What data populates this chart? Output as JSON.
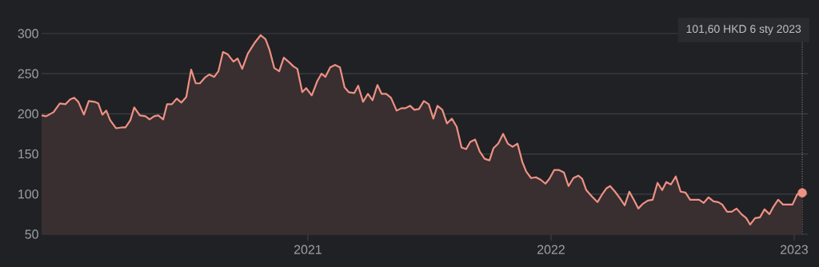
{
  "chart_data": {
    "type": "area",
    "series": [
      {
        "x": [
          2019.905,
          2019.924,
          2019.954,
          2019.98,
          2020.003,
          2020.023,
          2020.039,
          2020.056,
          2020.079,
          2020.099,
          2020.122,
          2020.138,
          2020.155,
          2020.171,
          2020.187,
          2020.211,
          2020.234,
          2020.25,
          2020.27,
          2020.286,
          2020.309,
          2020.332,
          2020.349,
          2020.368,
          2020.385,
          2020.405,
          2020.421,
          2020.441,
          2020.461,
          2020.48,
          2020.5,
          2020.52,
          2020.539,
          2020.556,
          2020.576,
          2020.595,
          2020.615,
          2020.632,
          2020.651,
          2020.671,
          2020.694,
          2020.711,
          2020.73,
          2020.753,
          2020.78,
          2020.806,
          2020.826,
          2020.842,
          2020.862,
          2020.882,
          2020.901,
          2020.924,
          2020.941,
          2020.957,
          2020.977,
          2020.993,
          2021.016,
          2021.039,
          2021.056,
          2021.072,
          2021.092,
          2021.112,
          2021.132,
          2021.151,
          2021.168,
          2021.191,
          2021.207,
          2021.227,
          2021.247,
          2021.266,
          2021.286,
          2021.303,
          2021.322,
          2021.342,
          2021.365,
          2021.385,
          2021.401,
          2021.421,
          2021.438,
          2021.457,
          2021.477,
          2021.497,
          2021.516,
          2021.533,
          2021.553,
          2021.572,
          2021.592,
          2021.612,
          2021.632,
          2021.651,
          2021.668,
          2021.688,
          2021.707,
          2021.727,
          2021.747,
          2021.763,
          2021.783,
          2021.803,
          2021.822,
          2021.842,
          2021.862,
          2021.882,
          2021.898,
          2021.918,
          2021.938,
          2021.957,
          2021.977,
          2021.993,
          2022.013,
          2022.033,
          2022.053,
          2022.072,
          2022.092,
          2022.112,
          2022.128,
          2022.145,
          2022.168,
          2022.191,
          2022.211,
          2022.227,
          2022.243,
          2022.263,
          2022.283,
          2022.303,
          2022.322,
          2022.342,
          2022.359,
          2022.378,
          2022.398,
          2022.418,
          2022.438,
          2022.457,
          2022.474,
          2022.493,
          2022.513,
          2022.533,
          2022.553,
          2022.572,
          2022.589,
          2022.609,
          2022.628,
          2022.648,
          2022.668,
          2022.688,
          2022.704,
          2022.724,
          2022.743,
          2022.763,
          2022.783,
          2022.803,
          2022.819,
          2022.839,
          2022.859,
          2022.878,
          2022.898,
          2022.914,
          2022.934,
          2022.954,
          2022.974,
          2022.993,
          2023.013,
          2023.033
        ],
        "values": [
          198,
          197,
          202,
          213,
          212,
          218,
          220,
          215,
          199,
          216,
          215,
          213,
          199,
          204,
          192,
          182,
          183,
          183,
          192,
          208,
          198,
          197,
          193,
          197,
          198,
          193,
          212,
          212,
          219,
          214,
          221,
          255,
          238,
          238,
          245,
          249,
          246,
          253,
          277,
          274,
          265,
          269,
          256,
          275,
          288,
          298,
          293,
          280,
          257,
          253,
          270,
          264,
          259,
          256,
          227,
          232,
          223,
          241,
          250,
          246,
          258,
          261,
          258,
          233,
          227,
          226,
          235,
          215,
          225,
          217,
          236,
          225,
          225,
          220,
          204,
          207,
          207,
          210,
          205,
          206,
          216,
          212,
          194,
          210,
          205,
          188,
          194,
          184,
          158,
          156,
          165,
          168,
          153,
          144,
          142,
          157,
          163,
          175,
          163,
          159,
          163,
          140,
          128,
          120,
          121,
          118,
          113,
          119,
          130,
          130,
          127,
          110,
          120,
          123,
          119,
          105,
          97,
          90,
          100,
          107,
          110,
          103,
          95,
          86,
          103,
          92,
          82,
          88,
          92,
          93,
          114,
          105,
          115,
          112,
          122,
          103,
          102,
          93,
          93,
          93,
          89,
          96,
          91,
          90,
          87,
          78,
          78,
          82,
          75,
          70,
          62,
          70,
          71,
          81,
          75,
          84,
          93,
          87,
          87,
          87,
          100,
          101.6
        ],
        "color": "#ee9184"
      },
      {
        "type": "scatter",
        "x": [
          2023.033
        ],
        "values": [
          101.6
        ],
        "color": "#ee9184",
        "marker": "circle"
      }
    ],
    "xlim": [
      2019.905,
      2023.056
    ],
    "ylim": [
      50,
      300
    ],
    "xticks": [
      2021,
      2022,
      2023
    ],
    "yticks": [
      50,
      100,
      150,
      200,
      250,
      300
    ],
    "grid": "y",
    "ref_lines": [
      {
        "axis": "x",
        "value": 2023.033,
        "color": "#9aa0a6",
        "line_style": "dotted"
      }
    ],
    "annotations": [
      "101,60 HKD  6 sty 2023"
    ]
  }
}
